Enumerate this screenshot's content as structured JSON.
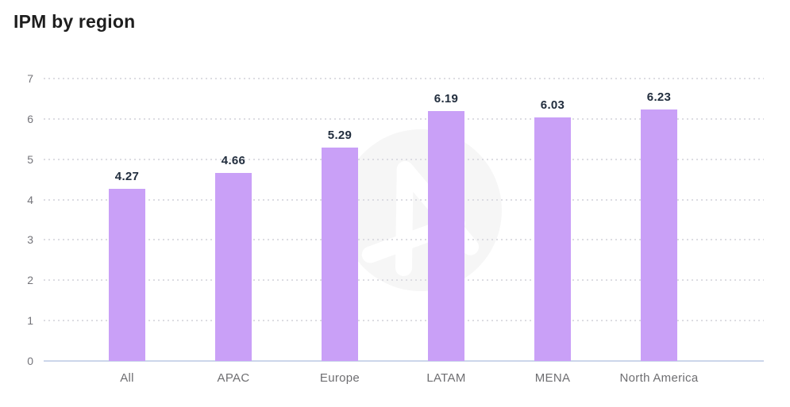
{
  "title": "IPM by region",
  "colors": {
    "bar": "#c9a0f7",
    "title_text": "#1e1e1e",
    "value_label_text": "#222e3e",
    "axis_tick_text": "#74747a",
    "category_label_text": "#6e6e71",
    "gridline_dots": "#dcdce2",
    "baseline": "#ccd6ea",
    "watermark_circle": "#f6f6f6",
    "watermark_glyph": "#ffffff"
  },
  "watermark": {
    "icon": "adjust-logo-a-in-circle"
  },
  "chart_data": {
    "type": "bar",
    "title": "IPM by region",
    "categories": [
      "All",
      "APAC",
      "Europe",
      "LATAM",
      "MENA",
      "North America"
    ],
    "values": [
      4.27,
      4.66,
      5.29,
      6.19,
      6.03,
      6.23
    ],
    "value_labels": [
      "4.27",
      "4.66",
      "5.29",
      "6.19",
      "6.03",
      "6.23"
    ],
    "xlabel": "",
    "ylabel": "",
    "ylim": [
      0,
      7
    ],
    "yticks": [
      0,
      1,
      2,
      3,
      4,
      5,
      6,
      7
    ],
    "grid": "horizontal-dotted",
    "legend": "none",
    "bar_color": "#c9a0f7"
  }
}
